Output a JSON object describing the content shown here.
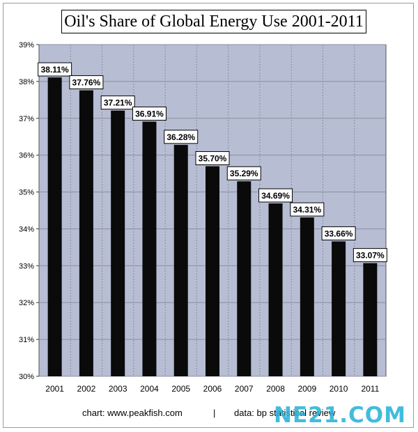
{
  "chart_data": {
    "type": "bar",
    "title": "Oil's Share of Global Energy Use 2001-2011",
    "categories": [
      "2001",
      "2002",
      "2003",
      "2004",
      "2005",
      "2006",
      "2007",
      "2008",
      "2009",
      "2010",
      "2011"
    ],
    "values": [
      38.11,
      37.76,
      37.21,
      36.91,
      36.28,
      35.7,
      35.29,
      34.69,
      34.31,
      33.66,
      33.07
    ],
    "data_labels": [
      "38.11%",
      "37.76%",
      "37.21%",
      "36.91%",
      "36.28%",
      "35.70%",
      "35.29%",
      "34.69%",
      "34.31%",
      "33.66%",
      "33.07%"
    ],
    "ylim": [
      30,
      39
    ],
    "yticks": [
      30,
      31,
      32,
      33,
      34,
      35,
      36,
      37,
      38,
      39
    ],
    "ytick_labels": [
      "30%",
      "31%",
      "32%",
      "33%",
      "34%",
      "35%",
      "36%",
      "37%",
      "38%",
      "39%"
    ],
    "grid": true,
    "colors": {
      "plot_background": "#b7bdd3",
      "bar": "#0a0a0a",
      "grid": "#8a8fa0"
    }
  },
  "footer": {
    "credit": "chart: www.peakfish.com",
    "separator": "|",
    "source": "data: bp statistical review"
  },
  "watermark": "NE21.COM"
}
